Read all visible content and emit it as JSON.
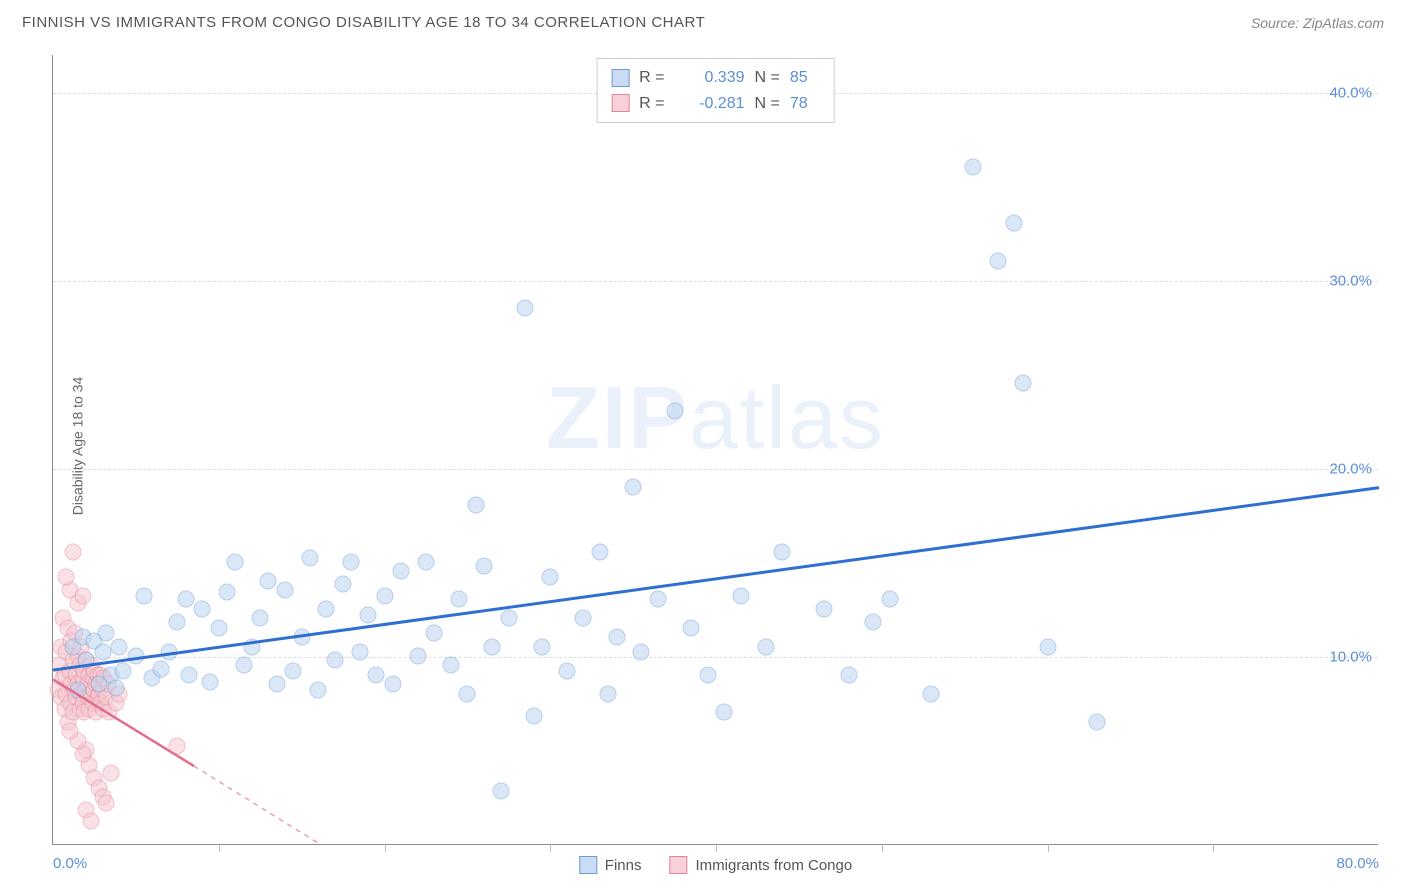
{
  "header": {
    "title": "FINNISH VS IMMIGRANTS FROM CONGO DISABILITY AGE 18 TO 34 CORRELATION CHART",
    "source": "Source: ZipAtlas.com"
  },
  "y_axis_label": "Disability Age 18 to 34",
  "watermark": {
    "bold": "ZIP",
    "light": "atlas"
  },
  "chart": {
    "type": "scatter",
    "background_color": "#ffffff",
    "grid_color": "#dddddd",
    "axis_color": "#888888",
    "xlim": [
      0,
      80
    ],
    "ylim": [
      0,
      42
    ],
    "y_ticks": [
      10,
      20,
      30,
      40
    ],
    "y_tick_labels": [
      "10.0%",
      "20.0%",
      "30.0%",
      "40.0%"
    ],
    "x_ticks_major": [
      0,
      80
    ],
    "x_tick_labels": [
      "0.0%",
      "80.0%"
    ],
    "x_ticks_minor": [
      10,
      20,
      30,
      40,
      50,
      60,
      70
    ],
    "marker_radius": 8.5,
    "marker_opacity": 0.55,
    "series": [
      {
        "name": "Finns",
        "color_fill": "#bcd4f0",
        "color_stroke": "#7fa8d9",
        "swatch_fill": "#c9dcf3",
        "swatch_stroke": "#6f9bd1",
        "stats": {
          "R": "0.339",
          "N": "85"
        },
        "regression": {
          "x1": 0,
          "y1": 9.3,
          "x2": 80,
          "y2": 19.0,
          "color": "#2f6fd0",
          "width": 3
        },
        "points": [
          [
            1.2,
            10.5
          ],
          [
            1.5,
            8.2
          ],
          [
            1.8,
            11.0
          ],
          [
            2.0,
            9.8
          ],
          [
            2.5,
            10.8
          ],
          [
            2.8,
            8.5
          ],
          [
            3.0,
            10.2
          ],
          [
            3.2,
            11.2
          ],
          [
            3.5,
            9.0
          ],
          [
            3.8,
            8.3
          ],
          [
            4.0,
            10.5
          ],
          [
            4.2,
            9.2
          ],
          [
            5.0,
            10.0
          ],
          [
            5.5,
            13.2
          ],
          [
            6.0,
            8.8
          ],
          [
            6.5,
            9.3
          ],
          [
            7.0,
            10.2
          ],
          [
            7.5,
            11.8
          ],
          [
            8.0,
            13.0
          ],
          [
            8.2,
            9.0
          ],
          [
            9.0,
            12.5
          ],
          [
            9.5,
            8.6
          ],
          [
            10.0,
            11.5
          ],
          [
            10.5,
            13.4
          ],
          [
            11.0,
            15.0
          ],
          [
            11.5,
            9.5
          ],
          [
            12.0,
            10.5
          ],
          [
            12.5,
            12.0
          ],
          [
            13.0,
            14.0
          ],
          [
            13.5,
            8.5
          ],
          [
            14.0,
            13.5
          ],
          [
            14.5,
            9.2
          ],
          [
            15.0,
            11.0
          ],
          [
            15.5,
            15.2
          ],
          [
            16.0,
            8.2
          ],
          [
            16.5,
            12.5
          ],
          [
            17.0,
            9.8
          ],
          [
            17.5,
            13.8
          ],
          [
            18.0,
            15.0
          ],
          [
            18.5,
            10.2
          ],
          [
            19.0,
            12.2
          ],
          [
            19.5,
            9.0
          ],
          [
            20.0,
            13.2
          ],
          [
            20.5,
            8.5
          ],
          [
            21.0,
            14.5
          ],
          [
            22.0,
            10.0
          ],
          [
            22.5,
            15.0
          ],
          [
            23.0,
            11.2
          ],
          [
            24.0,
            9.5
          ],
          [
            24.5,
            13.0
          ],
          [
            25.0,
            8.0
          ],
          [
            25.5,
            18.0
          ],
          [
            26.0,
            14.8
          ],
          [
            26.5,
            10.5
          ],
          [
            27.5,
            12.0
          ],
          [
            28.5,
            28.5
          ],
          [
            29.0,
            6.8
          ],
          [
            29.5,
            10.5
          ],
          [
            30.0,
            14.2
          ],
          [
            31.0,
            9.2
          ],
          [
            32.0,
            12.0
          ],
          [
            33.0,
            15.5
          ],
          [
            33.5,
            8.0
          ],
          [
            34.0,
            11.0
          ],
          [
            35.0,
            19.0
          ],
          [
            35.5,
            10.2
          ],
          [
            36.5,
            13.0
          ],
          [
            37.5,
            23.0
          ],
          [
            38.5,
            11.5
          ],
          [
            39.5,
            9.0
          ],
          [
            40.5,
            7.0
          ],
          [
            41.5,
            13.2
          ],
          [
            43.0,
            10.5
          ],
          [
            44.0,
            15.5
          ],
          [
            46.5,
            12.5
          ],
          [
            48.0,
            9.0
          ],
          [
            49.5,
            11.8
          ],
          [
            50.5,
            13.0
          ],
          [
            53.0,
            8.0
          ],
          [
            55.5,
            36.0
          ],
          [
            57.0,
            31.0
          ],
          [
            58.0,
            33.0
          ],
          [
            58.5,
            24.5
          ],
          [
            60.0,
            10.5
          ],
          [
            63.0,
            6.5
          ],
          [
            27.0,
            2.8
          ]
        ]
      },
      {
        "name": "Immigrants from Congo",
        "color_fill": "#f6c9d2",
        "color_stroke": "#e68fa3",
        "swatch_fill": "#f8d0d9",
        "swatch_stroke": "#e38599",
        "stats": {
          "R": "-0.281",
          "N": "78"
        },
        "regression_solid": {
          "x1": 0,
          "y1": 8.8,
          "x2": 8.5,
          "y2": 4.2,
          "color": "#e66b8a",
          "width": 2.5
        },
        "regression_dashed": {
          "x1": 8.5,
          "y1": 4.2,
          "x2": 16,
          "y2": 0.1,
          "color": "#e8a0b0",
          "width": 1.5
        },
        "points": [
          [
            0.3,
            8.2
          ],
          [
            0.4,
            9.5
          ],
          [
            0.5,
            7.8
          ],
          [
            0.5,
            10.5
          ],
          [
            0.6,
            8.8
          ],
          [
            0.6,
            12.0
          ],
          [
            0.7,
            7.2
          ],
          [
            0.7,
            9.0
          ],
          [
            0.8,
            10.2
          ],
          [
            0.8,
            8.0
          ],
          [
            0.9,
            11.5
          ],
          [
            0.9,
            6.5
          ],
          [
            1.0,
            9.2
          ],
          [
            1.0,
            7.5
          ],
          [
            1.1,
            8.5
          ],
          [
            1.1,
            10.8
          ],
          [
            1.2,
            7.0
          ],
          [
            1.2,
            9.8
          ],
          [
            1.3,
            8.2
          ],
          [
            1.3,
            11.2
          ],
          [
            1.4,
            7.8
          ],
          [
            1.4,
            9.0
          ],
          [
            1.5,
            8.5
          ],
          [
            1.5,
            10.0
          ],
          [
            1.6,
            7.2
          ],
          [
            1.6,
            9.5
          ],
          [
            1.7,
            8.0
          ],
          [
            1.7,
            10.5
          ],
          [
            1.8,
            7.5
          ],
          [
            1.8,
            8.8
          ],
          [
            1.9,
            9.2
          ],
          [
            1.9,
            7.0
          ],
          [
            2.0,
            8.2
          ],
          [
            2.0,
            9.8
          ],
          [
            2.1,
            7.8
          ],
          [
            2.1,
            8.5
          ],
          [
            2.2,
            9.0
          ],
          [
            2.2,
            7.2
          ],
          [
            2.3,
            8.0
          ],
          [
            2.3,
            9.5
          ],
          [
            2.4,
            7.5
          ],
          [
            2.4,
            8.8
          ],
          [
            2.5,
            8.2
          ],
          [
            2.5,
            9.2
          ],
          [
            2.6,
            7.0
          ],
          [
            2.6,
            8.5
          ],
          [
            2.7,
            9.0
          ],
          [
            2.7,
            7.8
          ],
          [
            2.8,
            8.0
          ],
          [
            2.8,
            8.5
          ],
          [
            2.9,
            7.5
          ],
          [
            2.9,
            9.0
          ],
          [
            3.0,
            8.2
          ],
          [
            3.0,
            7.2
          ],
          [
            3.1,
            8.8
          ],
          [
            3.2,
            7.8
          ],
          [
            3.3,
            8.5
          ],
          [
            3.4,
            7.0
          ],
          [
            1.0,
            13.5
          ],
          [
            1.2,
            15.5
          ],
          [
            0.8,
            14.2
          ],
          [
            1.5,
            12.8
          ],
          [
            1.8,
            13.2
          ],
          [
            2.2,
            4.2
          ],
          [
            2.5,
            3.5
          ],
          [
            2.0,
            5.0
          ],
          [
            1.8,
            4.8
          ],
          [
            2.8,
            3.0
          ],
          [
            3.0,
            2.5
          ],
          [
            1.5,
            5.5
          ],
          [
            3.2,
            2.2
          ],
          [
            3.5,
            3.8
          ],
          [
            1.0,
            6.0
          ],
          [
            2.0,
            1.8
          ],
          [
            2.3,
            1.2
          ],
          [
            7.5,
            5.2
          ],
          [
            3.8,
            7.5
          ],
          [
            4.0,
            8.0
          ]
        ]
      }
    ]
  },
  "stats_box": {
    "r_label": "R =",
    "n_label": "N ="
  },
  "bottom_legend": [
    "Finns",
    "Immigrants from Congo"
  ]
}
